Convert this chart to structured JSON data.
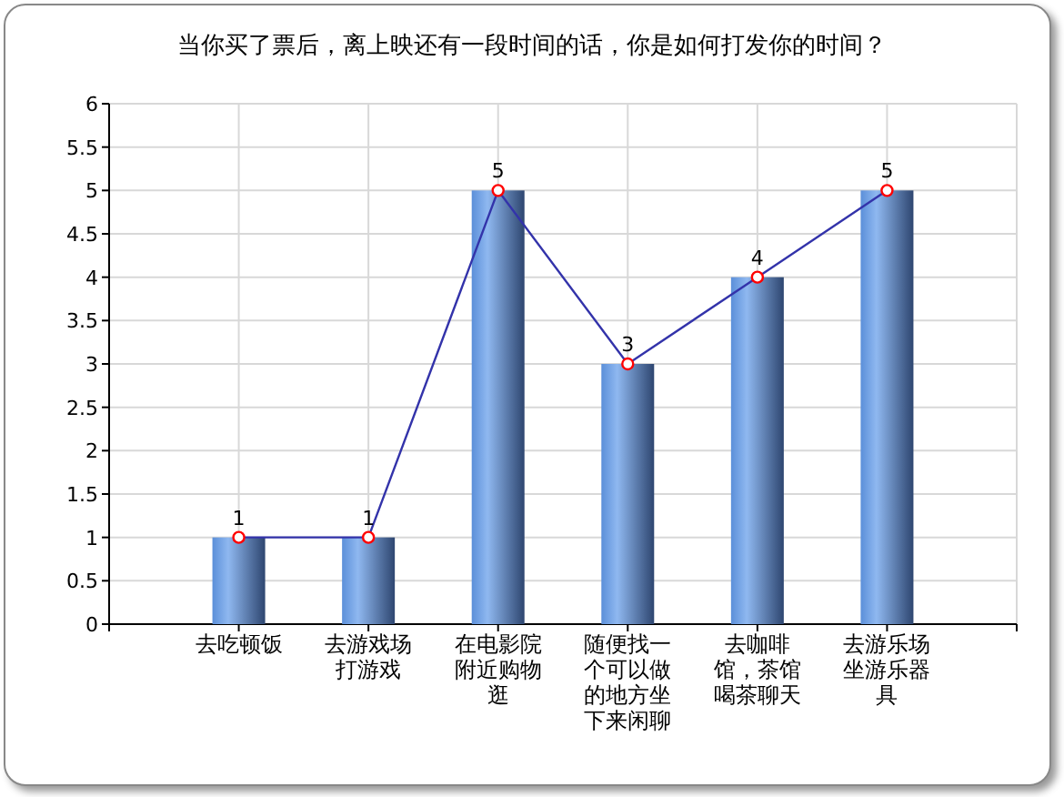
{
  "chart_data": {
    "type": "bar",
    "title": "当你买了票后，离上映还有一段时间的话，你是如何打发你的时间？",
    "categories": [
      "去吃顿饭",
      "去游戏场打游戏",
      "在电影院附近购物逛",
      "随便找一个可以做的地方坐下来闲聊",
      "去咖啡馆，茶馆喝茶聊天",
      "去游乐场坐游乐器具"
    ],
    "series": [
      {
        "color": "#5b8fd9",
        "values": [
          1,
          1,
          5,
          3,
          4,
          5
        ]
      },
      {
        "type": "line",
        "color": "#3333aa",
        "marker": "circle",
        "data_labels": true,
        "values": [
          1,
          1,
          5,
          3,
          4,
          5
        ]
      }
    ],
    "ylim": [
      0,
      6
    ],
    "yticks": [
      0,
      0.5,
      1,
      1.5,
      2,
      2.5,
      3,
      3.5,
      4,
      4.5,
      5,
      5.5,
      6
    ],
    "grid": true
  }
}
